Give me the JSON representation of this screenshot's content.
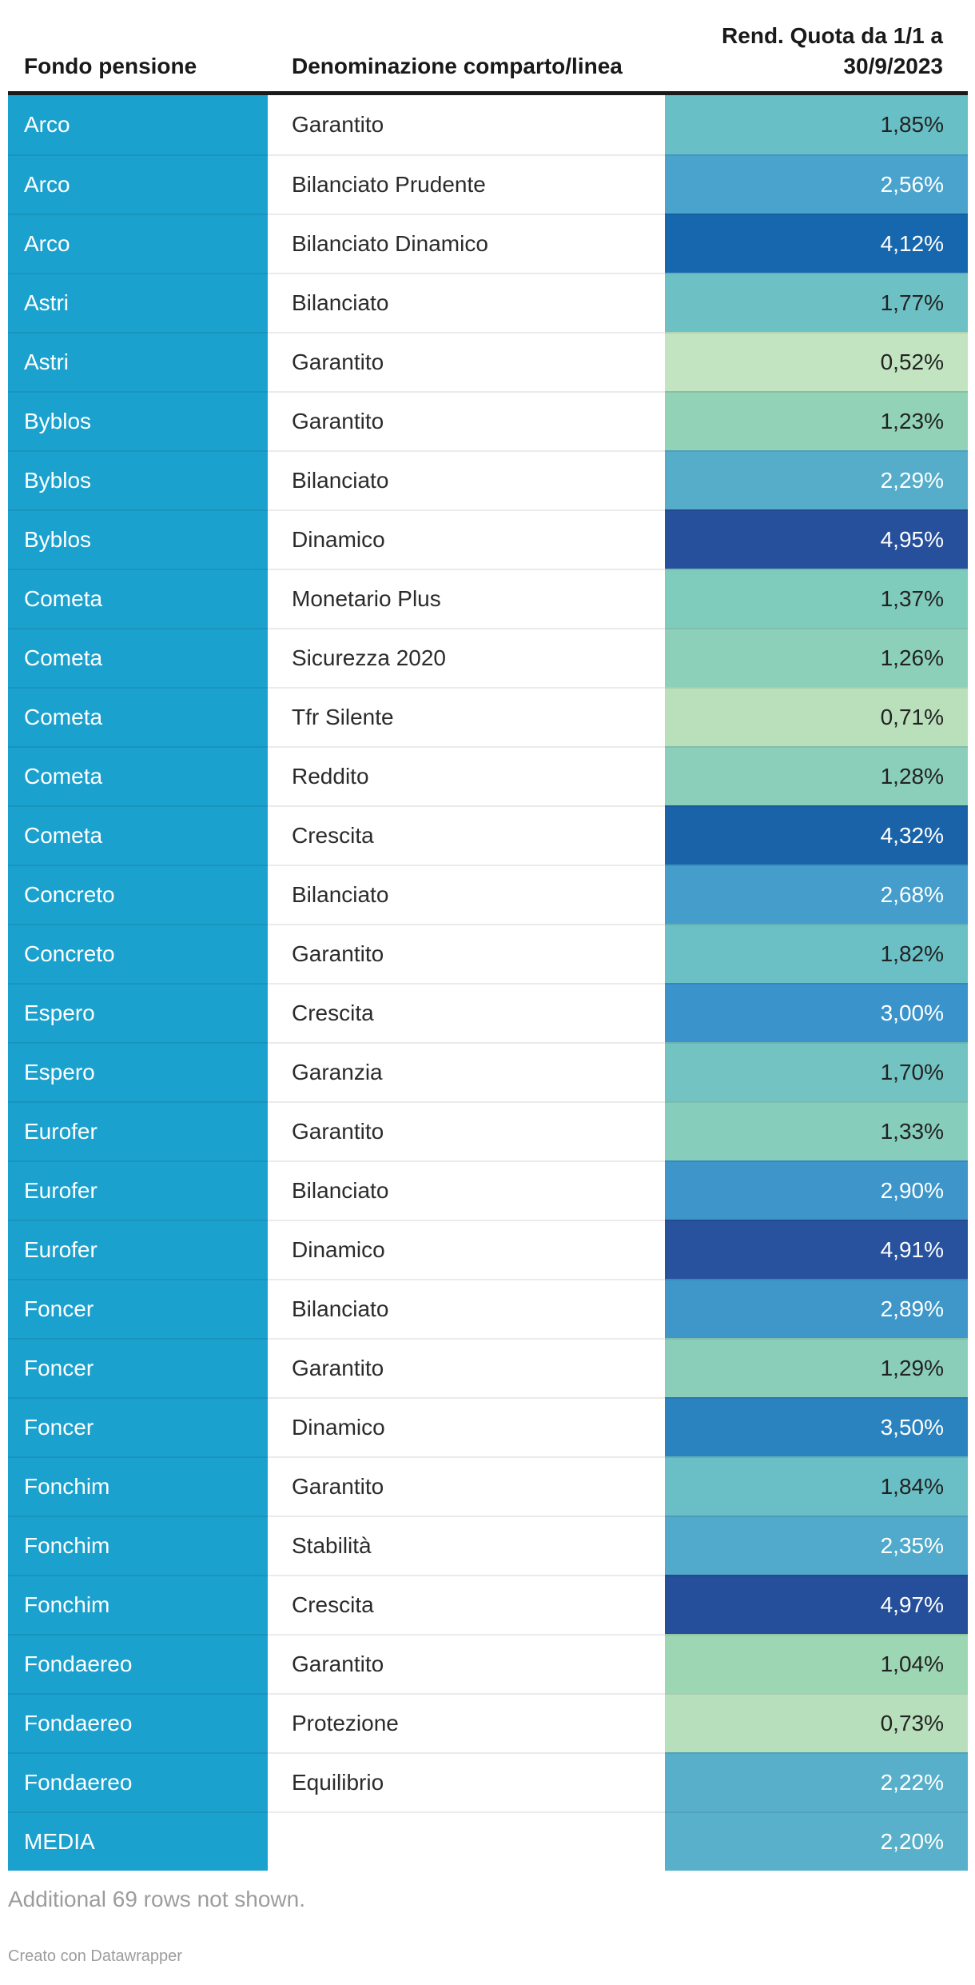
{
  "colors": {
    "fund_column": "#1BA1CE",
    "header_rule": "#1a1a1a",
    "row_divider": "rgba(0,0,0,0.08)",
    "footer_gray": "#9c9c9c"
  },
  "header": {
    "col1": "Fondo pensione",
    "col2": "Denominazione comparto/linea",
    "col3_line1": "Rend. Quota da 1/1 a",
    "col3_line2": "30/9/2023"
  },
  "footer": {
    "note": "Additional 69 rows not shown.",
    "credit": "Creato con Datawrapper"
  },
  "chart_data": {
    "type": "table",
    "title": "",
    "columns": [
      "Fondo pensione",
      "Denominazione comparto/linea",
      "Rend. Quota da 1/1 a 30/9/2023"
    ],
    "note": "Additional 69 rows not shown.",
    "credit": "Creato con Datawrapper",
    "heatmap_range": [
      0.52,
      4.97
    ],
    "rows": [
      {
        "fund": "Arco",
        "comparto": "Garantito",
        "value": 1.85,
        "display": "1,85%",
        "bg": "#68BFC5",
        "text": "dark"
      },
      {
        "fund": "Arco",
        "comparto": "Bilanciato Prudente",
        "value": 2.56,
        "display": "2,56%",
        "bg": "#4AA3CD",
        "text": "light"
      },
      {
        "fund": "Arco",
        "comparto": "Bilanciato Dinamico",
        "value": 4.12,
        "display": "4,12%",
        "bg": "#1767AE",
        "text": "light"
      },
      {
        "fund": "Astri",
        "comparto": "Bilanciato",
        "value": 1.77,
        "display": "1,77%",
        "bg": "#6DC1C5",
        "text": "dark"
      },
      {
        "fund": "Astri",
        "comparto": "Garantito",
        "value": 0.52,
        "display": "0,52%",
        "bg": "#C2E4C1",
        "text": "dark"
      },
      {
        "fund": "Byblos",
        "comparto": "Garantito",
        "value": 1.23,
        "display": "1,23%",
        "bg": "#92D2B6",
        "text": "dark"
      },
      {
        "fund": "Byblos",
        "comparto": "Bilanciato",
        "value": 2.29,
        "display": "2,29%",
        "bg": "#55ADCA",
        "text": "light"
      },
      {
        "fund": "Byblos",
        "comparto": "Dinamico",
        "value": 4.95,
        "display": "4,95%",
        "bg": "#26509B",
        "text": "light"
      },
      {
        "fund": "Cometa",
        "comparto": "Monetario Plus",
        "value": 1.37,
        "display": "1,37%",
        "bg": "#7FCBBC",
        "text": "dark"
      },
      {
        "fund": "Cometa",
        "comparto": "Sicurezza 2020",
        "value": 1.26,
        "display": "1,26%",
        "bg": "#8DD0B9",
        "text": "dark"
      },
      {
        "fund": "Cometa",
        "comparto": "Tfr Silente",
        "value": 0.71,
        "display": "0,71%",
        "bg": "#B9E0BB",
        "text": "dark"
      },
      {
        "fund": "Cometa",
        "comparto": "Reddito",
        "value": 1.28,
        "display": "1,28%",
        "bg": "#8BCFBA",
        "text": "dark"
      },
      {
        "fund": "Cometa",
        "comparto": "Crescita",
        "value": 4.32,
        "display": "4,32%",
        "bg": "#1A63A9",
        "text": "light"
      },
      {
        "fund": "Concreto",
        "comparto": "Bilanciato",
        "value": 2.68,
        "display": "2,68%",
        "bg": "#449DCB",
        "text": "light"
      },
      {
        "fund": "Concreto",
        "comparto": "Garantito",
        "value": 1.82,
        "display": "1,82%",
        "bg": "#6AC0C5",
        "text": "dark"
      },
      {
        "fund": "Espero",
        "comparto": "Crescita",
        "value": 3.0,
        "display": "3,00%",
        "bg": "#3A93CB",
        "text": "light"
      },
      {
        "fund": "Espero",
        "comparto": "Garanzia",
        "value": 1.7,
        "display": "1,70%",
        "bg": "#73C3C2",
        "text": "dark"
      },
      {
        "fund": "Eurofer",
        "comparto": "Garantito",
        "value": 1.33,
        "display": "1,33%",
        "bg": "#86CDBC",
        "text": "dark"
      },
      {
        "fund": "Eurofer",
        "comparto": "Bilanciato",
        "value": 2.9,
        "display": "2,90%",
        "bg": "#3D95CA",
        "text": "light"
      },
      {
        "fund": "Eurofer",
        "comparto": "Dinamico",
        "value": 4.91,
        "display": "4,91%",
        "bg": "#28529D",
        "text": "light"
      },
      {
        "fund": "Foncer",
        "comparto": "Bilanciato",
        "value": 2.89,
        "display": "2,89%",
        "bg": "#3E96C9",
        "text": "light"
      },
      {
        "fund": "Foncer",
        "comparto": "Garantito",
        "value": 1.29,
        "display": "1,29%",
        "bg": "#8ACEBA",
        "text": "dark"
      },
      {
        "fund": "Foncer",
        "comparto": "Dinamico",
        "value": 3.5,
        "display": "3,50%",
        "bg": "#2A82BE",
        "text": "light"
      },
      {
        "fund": "Fonchim",
        "comparto": "Garantito",
        "value": 1.84,
        "display": "1,84%",
        "bg": "#69BFC5",
        "text": "dark"
      },
      {
        "fund": "Fonchim",
        "comparto": "Stabilità",
        "value": 2.35,
        "display": "2,35%",
        "bg": "#51AACB",
        "text": "light"
      },
      {
        "fund": "Fonchim",
        "comparto": "Crescita",
        "value": 4.97,
        "display": "4,97%",
        "bg": "#254F9A",
        "text": "light"
      },
      {
        "fund": "Fondaereo",
        "comparto": "Garantito",
        "value": 1.04,
        "display": "1,04%",
        "bg": "#9DD6B2",
        "text": "dark"
      },
      {
        "fund": "Fondaereo",
        "comparto": "Protezione",
        "value": 0.73,
        "display": "0,73%",
        "bg": "#B7DFBC",
        "text": "dark"
      },
      {
        "fund": "Fondaereo",
        "comparto": "Equilibrio",
        "value": 2.22,
        "display": "2,22%",
        "bg": "#57AFCA",
        "text": "light"
      },
      {
        "fund": "MEDIA",
        "comparto": "",
        "value": 2.2,
        "display": "2,20%",
        "bg": "#58B0CA",
        "text": "light"
      }
    ]
  }
}
